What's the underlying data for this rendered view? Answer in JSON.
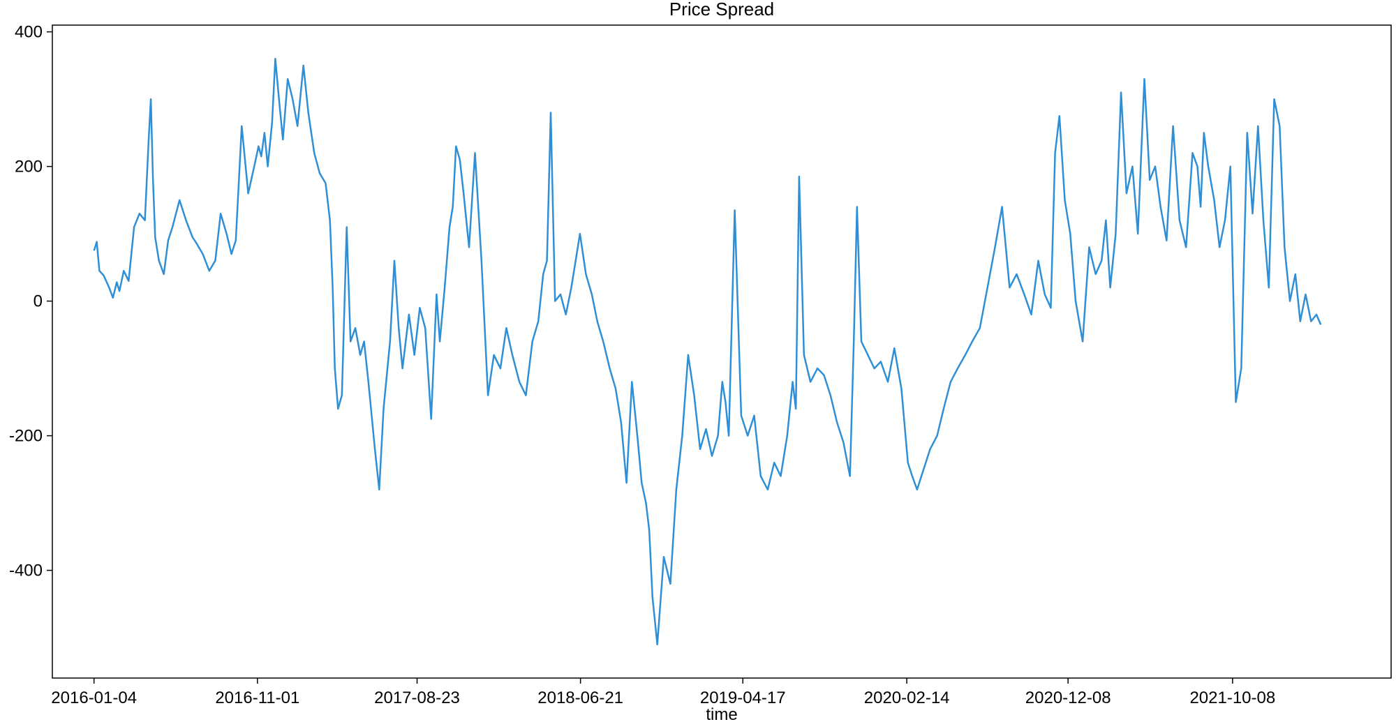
{
  "chart_data": {
    "type": "line",
    "title": "Price Spread",
    "xlabel": "time",
    "ylabel": "",
    "ylim": [
      -560,
      410
    ],
    "xlim": [
      "2015-10-19",
      "2022-07-28"
    ],
    "yticks": [
      -400,
      -200,
      0,
      200,
      400
    ],
    "xticks": [
      "2016-01-04",
      "2016-11-01",
      "2017-08-23",
      "2018-06-21",
      "2019-04-17",
      "2020-02-14",
      "2020-12-08",
      "2021-10-08"
    ],
    "grid": false,
    "line_color": "#2f8fd6",
    "series": [
      {
        "x": [
          "2016-01-04",
          "2016-01-09",
          "2016-01-14",
          "2016-01-22",
          "2016-02-01",
          "2016-02-08",
          "2016-02-15",
          "2016-02-20",
          "2016-02-28",
          "2016-03-08",
          "2016-03-18",
          "2016-03-28",
          "2016-04-07",
          "2016-04-14",
          "2016-04-18",
          "2016-04-22",
          "2016-04-26",
          "2016-05-03",
          "2016-05-12",
          "2016-05-20",
          "2016-05-28",
          "2016-06-10",
          "2016-06-22",
          "2016-07-04",
          "2016-07-12",
          "2016-07-23",
          "2016-08-04",
          "2016-08-15",
          "2016-08-25",
          "2016-09-05",
          "2016-09-14",
          "2016-09-22",
          "2016-10-03",
          "2016-10-15",
          "2016-10-26",
          "2016-11-03",
          "2016-11-08",
          "2016-11-14",
          "2016-11-20",
          "2016-11-28",
          "2016-12-04",
          "2016-12-12",
          "2016-12-18",
          "2016-12-27",
          "2017-01-05",
          "2017-01-14",
          "2017-01-25",
          "2017-02-03",
          "2017-02-14",
          "2017-02-24",
          "2017-03-07",
          "2017-03-15",
          "2017-03-20",
          "2017-03-24",
          "2017-03-30",
          "2017-04-06",
          "2017-04-15",
          "2017-04-22",
          "2017-05-01",
          "2017-05-10",
          "2017-05-17",
          "2017-05-25",
          "2017-06-06",
          "2017-06-14",
          "2017-06-22",
          "2017-07-04",
          "2017-07-12",
          "2017-07-20",
          "2017-07-27",
          "2017-08-08",
          "2017-08-18",
          "2017-08-28",
          "2017-09-07",
          "2017-09-18",
          "2017-09-28",
          "2017-10-04",
          "2017-10-13",
          "2017-10-22",
          "2017-10-28",
          "2017-11-03",
          "2017-11-10",
          "2017-11-17",
          "2017-11-27",
          "2017-12-08",
          "2017-12-20",
          "2018-01-01",
          "2018-01-12",
          "2018-01-24",
          "2018-02-04",
          "2018-02-15",
          "2018-02-28",
          "2018-03-12",
          "2018-03-24",
          "2018-04-04",
          "2018-04-13",
          "2018-04-20",
          "2018-04-27",
          "2018-05-05",
          "2018-05-15",
          "2018-05-25",
          "2018-06-04",
          "2018-06-12",
          "2018-06-20",
          "2018-07-01",
          "2018-07-12",
          "2018-07-22",
          "2018-08-02",
          "2018-08-14",
          "2018-08-25",
          "2018-09-04",
          "2018-09-14",
          "2018-09-24",
          "2018-10-04",
          "2018-10-12",
          "2018-10-20",
          "2018-10-26",
          "2018-11-01",
          "2018-11-10",
          "2018-11-22",
          "2018-12-04",
          "2018-12-15",
          "2018-12-26",
          "2019-01-06",
          "2019-01-17",
          "2019-01-28",
          "2019-02-08",
          "2019-02-19",
          "2019-03-02",
          "2019-03-10",
          "2019-03-16",
          "2019-03-22",
          "2019-04-02",
          "2019-04-14",
          "2019-04-26",
          "2019-05-08",
          "2019-05-20",
          "2019-06-02",
          "2019-06-14",
          "2019-06-26",
          "2019-07-08",
          "2019-07-18",
          "2019-07-24",
          "2019-07-30",
          "2019-08-08",
          "2019-08-20",
          "2019-09-02",
          "2019-09-14",
          "2019-09-26",
          "2019-10-08",
          "2019-10-20",
          "2019-11-01",
          "2019-11-08",
          "2019-11-14",
          "2019-11-22",
          "2019-12-04",
          "2019-12-16",
          "2019-12-28",
          "2020-01-10",
          "2020-01-22",
          "2020-02-04",
          "2020-02-16",
          "2020-02-24",
          "2020-03-04",
          "2020-03-16",
          "2020-03-28",
          "2020-04-10",
          "2020-04-22",
          "2020-05-05",
          "2020-05-18",
          "2020-06-01",
          "2020-06-14",
          "2020-06-28",
          "2020-07-12",
          "2020-07-26",
          "2020-08-08",
          "2020-08-22",
          "2020-09-04",
          "2020-09-18",
          "2020-10-01",
          "2020-10-14",
          "2020-10-26",
          "2020-11-06",
          "2020-11-14",
          "2020-11-22",
          "2020-12-02",
          "2020-12-12",
          "2020-12-22",
          "2021-01-04",
          "2021-01-16",
          "2021-01-28",
          "2021-02-08",
          "2021-02-16",
          "2021-02-24",
          "2021-03-06",
          "2021-03-16",
          "2021-03-26",
          "2021-04-06",
          "2021-04-16",
          "2021-04-28",
          "2021-05-08",
          "2021-05-18",
          "2021-05-28",
          "2021-06-08",
          "2021-06-20",
          "2021-07-02",
          "2021-07-14",
          "2021-07-26",
          "2021-08-04",
          "2021-08-10",
          "2021-08-16",
          "2021-08-24",
          "2021-09-04",
          "2021-09-14",
          "2021-09-24",
          "2021-10-04",
          "2021-10-14",
          "2021-10-24",
          "2021-11-04",
          "2021-11-14",
          "2021-11-24",
          "2021-12-04",
          "2021-12-14",
          "2021-12-24",
          "2022-01-03",
          "2022-01-12",
          "2022-01-22",
          "2022-02-01",
          "2022-02-10",
          "2022-02-20",
          "2022-03-02",
          "2022-03-12",
          "2022-03-20"
        ],
        "y": [
          75,
          88,
          45,
          38,
          20,
          5,
          28,
          15,
          45,
          30,
          110,
          130,
          120,
          240,
          300,
          180,
          95,
          60,
          40,
          90,
          110,
          150,
          120,
          95,
          85,
          70,
          45,
          60,
          130,
          100,
          70,
          90,
          260,
          160,
          200,
          230,
          215,
          250,
          200,
          265,
          360,
          290,
          240,
          330,
          300,
          260,
          350,
          280,
          220,
          190,
          175,
          120,
          20,
          -100,
          -160,
          -140,
          110,
          -60,
          -40,
          -80,
          -60,
          -120,
          -220,
          -280,
          -160,
          -60,
          60,
          -40,
          -100,
          -20,
          -80,
          -10,
          -40,
          -175,
          10,
          -60,
          20,
          110,
          140,
          230,
          210,
          160,
          80,
          220,
          60,
          -140,
          -80,
          -100,
          -40,
          -80,
          -120,
          -140,
          -60,
          -30,
          40,
          60,
          280,
          0,
          10,
          -20,
          20,
          60,
          100,
          40,
          10,
          -30,
          -60,
          -100,
          -130,
          -180,
          -270,
          -120,
          -200,
          -270,
          -300,
          -340,
          -440,
          -510,
          -380,
          -420,
          -280,
          -200,
          -80,
          -140,
          -220,
          -190,
          -230,
          -200,
          -120,
          -150,
          -200,
          135,
          -170,
          -200,
          -170,
          -260,
          -280,
          -240,
          -260,
          -200,
          -120,
          -160,
          185,
          -80,
          -120,
          -100,
          -110,
          -140,
          -180,
          -210,
          -260,
          -60,
          140,
          -60,
          -80,
          -100,
          -90,
          -120,
          -70,
          -130,
          -240,
          -260,
          -280,
          -250,
          -220,
          -200,
          -160,
          -120,
          -100,
          -80,
          -60,
          -40,
          20,
          80,
          140,
          20,
          40,
          10,
          -20,
          60,
          10,
          -10,
          220,
          275,
          150,
          100,
          0,
          -60,
          80,
          40,
          60,
          120,
          20,
          100,
          310,
          160,
          200,
          100,
          330,
          180,
          200,
          140,
          90,
          260,
          120,
          80,
          220,
          200,
          140,
          250,
          200,
          150,
          80,
          120,
          200,
          -150,
          -100,
          250,
          130,
          260,
          120,
          20,
          300,
          260,
          80,
          0,
          40,
          -30,
          10,
          -30,
          -20,
          -35
        ]
      }
    ]
  }
}
